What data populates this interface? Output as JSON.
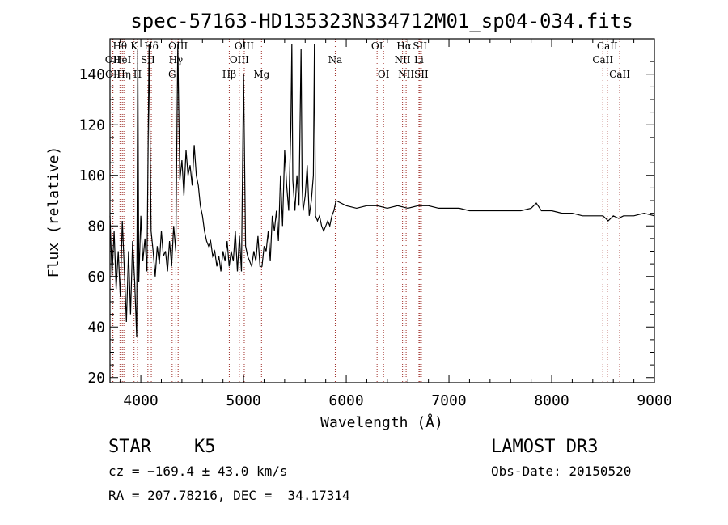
{
  "chart_data": {
    "type": "line",
    "title": "spec-57163-HD135323N334712M01_sp04-034.fits",
    "xlabel": "Wavelength (Å)",
    "ylabel": "Flux (relative)",
    "xlim": [
      3700,
      9000
    ],
    "ylim": [
      18,
      154
    ],
    "x_ticks": [
      4000,
      5000,
      6000,
      7000,
      8000,
      9000
    ],
    "y_ticks": [
      20,
      40,
      60,
      80,
      100,
      120,
      140
    ],
    "grid": false,
    "line_color": "#000000",
    "marker_color": "#a0302a",
    "spectrum": {
      "x": [
        3700,
        3720,
        3740,
        3760,
        3780,
        3800,
        3820,
        3840,
        3860,
        3880,
        3900,
        3920,
        3940,
        3960,
        3970,
        3980,
        4000,
        4020,
        4040,
        4060,
        4080,
        4100,
        4120,
        4140,
        4160,
        4180,
        4200,
        4220,
        4240,
        4260,
        4280,
        4300,
        4320,
        4340,
        4360,
        4380,
        4400,
        4420,
        4440,
        4460,
        4480,
        4500,
        4520,
        4540,
        4560,
        4580,
        4600,
        4620,
        4640,
        4660,
        4680,
        4700,
        4720,
        4740,
        4760,
        4780,
        4800,
        4820,
        4840,
        4860,
        4880,
        4900,
        4920,
        4940,
        4960,
        4980,
        5000,
        5020,
        5040,
        5060,
        5080,
        5100,
        5120,
        5140,
        5160,
        5180,
        5200,
        5220,
        5240,
        5260,
        5280,
        5300,
        5320,
        5340,
        5360,
        5380,
        5400,
        5420,
        5440,
        5460,
        5470,
        5480,
        5500,
        5520,
        5540,
        5560,
        5570,
        5580,
        5600,
        5620,
        5640,
        5660,
        5680,
        5690,
        5700,
        5720,
        5740,
        5760,
        5780,
        5800,
        5820,
        5840,
        5860,
        5880,
        5900,
        6000,
        6100,
        6200,
        6300,
        6400,
        6500,
        6600,
        6700,
        6800,
        6900,
        7000,
        7100,
        7200,
        7300,
        7400,
        7500,
        7600,
        7700,
        7800,
        7850,
        7900,
        8000,
        8100,
        8200,
        8300,
        8400,
        8500,
        8550,
        8600,
        8650,
        8700,
        8800,
        8900,
        9000
      ],
      "y": [
        84,
        60,
        78,
        55,
        70,
        52,
        82,
        62,
        42,
        70,
        45,
        74,
        58,
        36,
        150,
        58,
        84,
        66,
        75,
        62,
        152,
        78,
        70,
        60,
        72,
        65,
        78,
        68,
        70,
        62,
        74,
        64,
        80,
        70,
        152,
        98,
        106,
        92,
        110,
        100,
        104,
        96,
        112,
        100,
        96,
        88,
        84,
        78,
        74,
        72,
        74,
        68,
        70,
        64,
        68,
        62,
        70,
        66,
        74,
        64,
        70,
        66,
        78,
        62,
        76,
        62,
        140,
        72,
        68,
        66,
        64,
        70,
        66,
        76,
        64,
        64,
        72,
        70,
        78,
        66,
        84,
        78,
        86,
        74,
        100,
        80,
        110,
        96,
        86,
        118,
        152,
        98,
        86,
        100,
        88,
        150,
        96,
        86,
        92,
        104,
        84,
        90,
        100,
        152,
        84,
        82,
        84,
        80,
        78,
        80,
        82,
        80,
        84,
        86,
        90,
        88,
        87,
        88,
        88,
        87,
        88,
        87,
        88,
        88,
        87,
        87,
        87,
        86,
        86,
        86,
        86,
        86,
        86,
        87,
        89,
        86,
        86,
        85,
        85,
        84,
        84,
        84,
        82,
        84,
        83,
        84,
        84,
        85,
        84
      ]
    },
    "lines": [
      {
        "label": "Hθ",
        "x": 3797,
        "row": 1
      },
      {
        "label": "OII",
        "x": 3727,
        "row": 2
      },
      {
        "label": "OII",
        "x": 3729,
        "row": 3
      },
      {
        "label": "HeI",
        "x": 3820,
        "row": 2
      },
      {
        "label": "Hη",
        "x": 3835,
        "row": 3
      },
      {
        "label": "K",
        "x": 3934,
        "row": 1
      },
      {
        "label": "SII",
        "x": 4069,
        "row": 2
      },
      {
        "label": "H",
        "x": 3968,
        "row": 3
      },
      {
        "label": "Hδ",
        "x": 4102,
        "row": 1
      },
      {
        "label": "OIII",
        "x": 4363,
        "row": 1
      },
      {
        "label": "Hγ",
        "x": 4341,
        "row": 2
      },
      {
        "label": "G",
        "x": 4305,
        "row": 3
      },
      {
        "label": "Hβ",
        "x": 4861,
        "row": 3
      },
      {
        "label": "OIII",
        "x": 5007,
        "row": 1
      },
      {
        "label": "OIII",
        "x": 4959,
        "row": 2
      },
      {
        "label": "Mg",
        "x": 5175,
        "row": 3
      },
      {
        "label": "Na",
        "x": 5893,
        "row": 2
      },
      {
        "label": "OI",
        "x": 6300,
        "row": 1
      },
      {
        "label": "OI",
        "x": 6363,
        "row": 3
      },
      {
        "label": "Hα",
        "x": 6563,
        "row": 1
      },
      {
        "label": "NII",
        "x": 6548,
        "row": 2
      },
      {
        "label": "NII",
        "x": 6583,
        "row": 3
      },
      {
        "label": "SII",
        "x": 6717,
        "row": 1
      },
      {
        "label": "Li",
        "x": 6708,
        "row": 2
      },
      {
        "label": "SII",
        "x": 6731,
        "row": 3
      },
      {
        "label": "CaII",
        "x": 8542,
        "row": 1
      },
      {
        "label": "CaII",
        "x": 8498,
        "row": 2
      },
      {
        "label": "CaII",
        "x": 8662,
        "row": 3
      }
    ]
  },
  "info": {
    "object_class": "STAR",
    "subclass": "K5",
    "survey": "LAMOST DR3",
    "cz": "cz = −169.4 ± 43.0 km/s",
    "obs_date": "Obs-Date: 20150520",
    "coords": "RA = 207.78216, DEC =  34.17314"
  }
}
